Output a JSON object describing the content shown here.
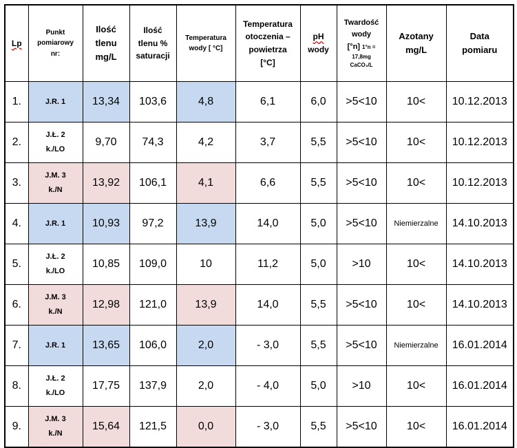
{
  "colors": {
    "blue_highlight": "#c6d9f0",
    "pink_highlight": "#f2dcdb",
    "link_text": "#1f4e9c"
  },
  "headers": {
    "lp": "Lp",
    "point_line1": "Punkt",
    "point_line2": "pomiarowy",
    "point_line3": "nr:",
    "oxygen_line1": "Ilość",
    "oxygen_line2": "tlenu",
    "oxygen_line3": "mg/L",
    "saturation_line1": "Ilość",
    "saturation_line2": "tlenu %",
    "saturation_line3": "saturacji",
    "water_temp_line1": "Temperatura",
    "water_temp_line2": "wody [ °C]",
    "air_temp_line1": "Temperatura",
    "air_temp_line2": "otoczenia –",
    "air_temp_line3": "powietrza",
    "air_temp_line4": "[°C]",
    "ph_line1": "pH",
    "ph_line2": "wody",
    "hardness_line1": "Twardość",
    "hardness_line2": "wody",
    "hardness_line3": "[°n]",
    "hardness_note1": "1°n =",
    "hardness_note2": "17,8mg",
    "hardness_note3": "CaCO₃/L",
    "nitrates_line1": "Azotany",
    "nitrates_line2": "mg/L",
    "date_line1": "Data",
    "date_line2": "pomiaru"
  },
  "rows": [
    {
      "lp": "1.",
      "point": [
        "J.R. 1"
      ],
      "point_color": "blue",
      "oxygen": "13,34",
      "oxygen_color": "blue",
      "saturation": "103,6",
      "water_temp": "4,8",
      "water_temp_color": "blue",
      "air_temp": "6,1",
      "air_temp_style": "plain",
      "ph": "6,0",
      "hardness": ">5<10",
      "nitrates": "10<",
      "nitrates_small": false,
      "date": "10.12.2013"
    },
    {
      "lp": "2.",
      "point": [
        "J.Ł. 2",
        "k./LO"
      ],
      "point_color": "none",
      "oxygen": "9,70",
      "oxygen_color": "none",
      "saturation": "74,3",
      "water_temp": "4,2",
      "water_temp_color": "none",
      "air_temp": "3,7",
      "air_temp_style": "plain",
      "ph": "5,5",
      "hardness": ">5<10",
      "nitrates": "10<",
      "nitrates_small": false,
      "date": "10.12.2013"
    },
    {
      "lp": "3.",
      "point": [
        "J.M. 3",
        "k./N"
      ],
      "point_color": "pink",
      "oxygen": "13,92",
      "oxygen_color": "pink",
      "saturation": "106,1",
      "water_temp": "4,1",
      "water_temp_color": "pink",
      "air_temp": "6,6",
      "air_temp_style": "plain",
      "ph": "5,5",
      "hardness": ">5<10",
      "nitrates": "10<",
      "nitrates_small": false,
      "date": "10.12.2013"
    },
    {
      "lp": "4.",
      "point": [
        "J.R. 1"
      ],
      "point_color": "blue",
      "oxygen": "10,93",
      "oxygen_color": "blue",
      "saturation": "97,2",
      "water_temp": "13,9",
      "water_temp_color": "blue",
      "air_temp": "14,0",
      "air_temp_style": "plain",
      "ph": "5,0",
      "hardness": ">5<10",
      "nitrates": "Niemierzalne",
      "nitrates_small": true,
      "date": "14.10.2013"
    },
    {
      "lp": "5.",
      "point": [
        "J.Ł. 2",
        "k./LO"
      ],
      "point_color": "none",
      "oxygen": "10,85",
      "oxygen_color": "none",
      "saturation": "109,0",
      "water_temp": "10",
      "water_temp_color": "none",
      "air_temp": "11,2",
      "air_temp_style": "plain",
      "ph": "5,0",
      "hardness": ">10",
      "nitrates": "10<",
      "nitrates_small": false,
      "date": "14.10.2013"
    },
    {
      "lp": "6.",
      "point": [
        "J.M. 3",
        "k./N"
      ],
      "point_color": "pink",
      "oxygen": "12,98",
      "oxygen_color": "pink",
      "saturation": "121,0",
      "water_temp": "13,9",
      "water_temp_color": "pink",
      "air_temp": "14,0",
      "air_temp_style": "plain",
      "ph": "5,5",
      "hardness": ">5<10",
      "nitrates": "10<",
      "nitrates_small": false,
      "date": "14.10.2013"
    },
    {
      "lp": "7.",
      "point": [
        "J.R. 1"
      ],
      "point_color": "blue",
      "oxygen": "13,65",
      "oxygen_color": "blue",
      "saturation": "106,0",
      "water_temp": "2,0",
      "water_temp_color": "blue",
      "air_temp": "- 3,0",
      "air_temp_style": "link",
      "ph": "5,5",
      "hardness": ">5<10",
      "nitrates": "Niemierzalne",
      "nitrates_small": true,
      "date": "16.01.2014"
    },
    {
      "lp": "8.",
      "point": [
        "J.Ł. 2",
        "k./LO"
      ],
      "point_color": "none",
      "oxygen": "17,75",
      "oxygen_color": "none",
      "saturation": "137,9",
      "water_temp": "2,0",
      "water_temp_color": "none",
      "air_temp": "- 4,0",
      "air_temp_style": "link",
      "ph": "5,0",
      "hardness": ">10",
      "nitrates": "10<",
      "nitrates_small": false,
      "date": "16.01.2014"
    },
    {
      "lp": "9.",
      "point": [
        "J.M. 3",
        "k./N"
      ],
      "point_color": "pink",
      "oxygen": "15,64",
      "oxygen_color": "pink",
      "saturation": "121,5",
      "water_temp": "0,0",
      "water_temp_color": "pink",
      "air_temp": "- 3,0",
      "air_temp_style": "link",
      "ph": "5,5",
      "hardness": ">5<10",
      "nitrates": "10<",
      "nitrates_small": false,
      "date": "16.01.2014"
    }
  ]
}
